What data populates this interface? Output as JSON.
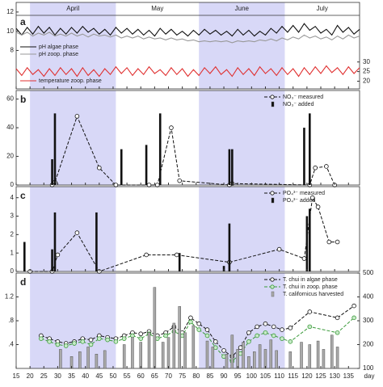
{
  "chart_data": [
    {
      "type": "line",
      "panel_label": "a",
      "months": [
        {
          "label": "April",
          "start": 20,
          "end": 51,
          "shaded": true
        },
        {
          "label": "May",
          "start": 51,
          "end": 81,
          "shaded": false
        },
        {
          "label": "June",
          "start": 81,
          "end": 112,
          "shaded": true
        },
        {
          "label": "July",
          "start": 112,
          "end": 139,
          "shaded": false
        }
      ],
      "ylim": [
        4,
        13
      ],
      "yticks": [
        8,
        10,
        12
      ],
      "y2lim": [
        16,
        61
      ],
      "y2ticks": [
        20,
        25,
        30
      ],
      "legend": "left",
      "x": [
        15,
        17,
        19,
        21,
        23,
        25,
        27,
        29,
        31,
        33,
        35,
        37,
        39,
        41,
        43,
        45,
        47,
        49,
        51,
        53,
        55,
        57,
        59,
        61,
        63,
        65,
        67,
        69,
        71,
        73,
        75,
        77,
        79,
        81,
        83,
        85,
        87,
        89,
        91,
        93,
        95,
        97,
        99,
        101,
        103,
        105,
        107,
        109,
        111,
        113,
        115,
        117,
        119,
        121,
        123,
        125,
        127,
        129,
        131,
        133,
        135,
        137,
        139
      ],
      "series": [
        {
          "name": "pH algae phase",
          "color": "#111111",
          "style": "line",
          "values": [
            10.3,
            9.6,
            10.4,
            9.7,
            10.5,
            9.8,
            10.4,
            9.6,
            10.3,
            9.7,
            10.4,
            9.8,
            10.5,
            9.9,
            10.3,
            9.7,
            10.2,
            9.6,
            10.4,
            9.8,
            10.3,
            9.7,
            10.2,
            9.6,
            10.1,
            9.5,
            10.3,
            9.7,
            10.2,
            9.6,
            10.0,
            9.5,
            10.1,
            9.6,
            10.2,
            9.7,
            10.1,
            9.6,
            10.0,
            9.5,
            10.2,
            9.6,
            10.1,
            9.5,
            10.0,
            9.6,
            10.3,
            9.8,
            10.5,
            9.9,
            10.6,
            9.9,
            10.8,
            10.1,
            10.5,
            9.8,
            10.2,
            9.6,
            10.6,
            9.9,
            10.4,
            9.7,
            10.2
          ]
        },
        {
          "name": "pH zoop. phase",
          "color": "#999999",
          "style": "line",
          "values": [
            9.9,
            9.6,
            9.9,
            9.5,
            9.8,
            9.6,
            9.9,
            9.5,
            9.7,
            9.5,
            9.8,
            9.5,
            9.7,
            9.4,
            9.7,
            9.5,
            9.6,
            9.4,
            9.6,
            9.3,
            9.5,
            9.3,
            9.5,
            9.2,
            9.4,
            9.2,
            9.3,
            9.1,
            9.3,
            9.1,
            9.2,
            9.0,
            9.1,
            8.9,
            9.0,
            8.9,
            9.0,
            8.9,
            9.0,
            8.8,
            9.0,
            8.9,
            9.0,
            8.9,
            9.1,
            9.0,
            9.2,
            9.0,
            9.3,
            9.1,
            9.4,
            9.2,
            9.6,
            9.3,
            9.5,
            9.2,
            9.4,
            9.1,
            9.5,
            9.2,
            9.6,
            9.3,
            9.5
          ]
        },
        {
          "name": "temperature zoop. phase",
          "color": "#e03030",
          "style": "line",
          "axis": "y2",
          "values": [
            26.5,
            23.0,
            27.0,
            23.5,
            26.0,
            22.5,
            26.5,
            23.0,
            27.0,
            23.5,
            26.5,
            22.5,
            27.0,
            23.0,
            26.0,
            22.5,
            26.5,
            23.5,
            27.5,
            24.0,
            27.0,
            23.0,
            26.5,
            23.5,
            27.5,
            24.0,
            26.0,
            23.0,
            27.0,
            23.5,
            26.5,
            22.5,
            26.0,
            23.0,
            27.0,
            24.0,
            27.5,
            23.5,
            26.0,
            22.5,
            27.0,
            23.5,
            26.5,
            23.0,
            27.5,
            24.0,
            26.5,
            23.0,
            27.0,
            23.5,
            26.5,
            22.5,
            27.0,
            23.5,
            27.5,
            24.0,
            28.0,
            24.5,
            27.0,
            23.5,
            27.5,
            24.0,
            27.0
          ]
        }
      ]
    },
    {
      "type": "combo",
      "panel_label": "b",
      "ylim": [
        0,
        66
      ],
      "yticks": [
        0,
        20,
        40,
        60
      ],
      "legend": "upper right",
      "series": [
        {
          "name": "NO₃⁻ measured",
          "color": "#111111",
          "style": "dashed-marker",
          "marker_fill": "#ffffff",
          "x": [
            28,
            29,
            37,
            45,
            51,
            63,
            66,
            71,
            74,
            92,
            93,
            121,
            123,
            127,
            130
          ],
          "values": [
            0,
            2,
            48,
            12,
            0,
            0,
            0,
            40,
            3,
            0,
            1,
            0,
            12,
            13,
            0
          ]
        },
        {
          "name": "NO₃⁻ added",
          "color": "#111111",
          "style": "bar",
          "x": [
            28,
            29,
            53,
            62,
            67,
            92,
            93,
            119,
            121
          ],
          "values": [
            18,
            50,
            25,
            28,
            50,
            25,
            25,
            40,
            50
          ]
        }
      ]
    },
    {
      "type": "combo",
      "panel_label": "c",
      "ylim": [
        0,
        4.6
      ],
      "yticks": [
        0,
        1,
        2,
        3,
        4
      ],
      "legend": "upper right",
      "series": [
        {
          "name": "PO₄³⁻ measured",
          "color": "#111111",
          "style": "dashed-marker",
          "marker_fill": "#ffffff",
          "x": [
            20,
            28,
            30,
            37,
            45,
            62,
            73,
            92,
            110,
            119,
            122,
            124,
            128,
            131
          ],
          "values": [
            0,
            0,
            0.9,
            2.1,
            0,
            0.9,
            0.9,
            0.5,
            1.2,
            0.7,
            4,
            3.5,
            1.6,
            1.6
          ]
        },
        {
          "name": "PO₄³⁻ added",
          "color": "#111111",
          "style": "bar",
          "x": [
            18,
            28,
            29,
            44,
            74,
            90,
            92,
            120,
            121
          ],
          "values": [
            1.6,
            1.2,
            3.2,
            3.2,
            1.0,
            0.3,
            2.6,
            3.0,
            3.4
          ]
        }
      ]
    },
    {
      "type": "combo",
      "panel_label": "d",
      "ylim": [
        0,
        1.6
      ],
      "yticks": [
        {
          "value": 0.4,
          "label": ".4"
        },
        {
          "value": 0.8,
          "label": ".8"
        },
        {
          "value": 1.2,
          "label": "1.2"
        }
      ],
      "y2lim": [
        100,
        500
      ],
      "y2ticks": [
        100,
        200,
        300,
        400,
        500
      ],
      "legend": "upper right",
      "xlim": [
        15,
        139
      ],
      "xticks": [
        15,
        20,
        25,
        30,
        35,
        40,
        45,
        50,
        55,
        60,
        65,
        70,
        75,
        80,
        85,
        90,
        95,
        100,
        105,
        110,
        115,
        120,
        125,
        130,
        135
      ],
      "xlabel": "day",
      "series": [
        {
          "name": "T. chui in algae phase",
          "color": "#111111",
          "style": "dashed-marker",
          "marker_fill": "#ffffff",
          "x": [
            24,
            27,
            30,
            33,
            36,
            39,
            42,
            45,
            48,
            51,
            54,
            57,
            60,
            63,
            66,
            69,
            72,
            75,
            78,
            81,
            84,
            87,
            90,
            93,
            96,
            99,
            102,
            105,
            108,
            111,
            114,
            121,
            131,
            137
          ],
          "values": [
            0.55,
            0.5,
            0.45,
            0.42,
            0.45,
            0.5,
            0.48,
            0.55,
            0.52,
            0.5,
            0.55,
            0.6,
            0.58,
            0.62,
            0.55,
            0.6,
            0.7,
            0.6,
            0.85,
            0.75,
            0.65,
            0.45,
            0.3,
            0.2,
            0.35,
            0.6,
            0.7,
            0.75,
            0.7,
            0.65,
            0.68,
            0.95,
            0.85,
            1.05
          ]
        },
        {
          "name": "T. chui in zoop. phase",
          "color": "#3a9a3a",
          "style": "dashed-marker",
          "marker_fill": "#c8eac8",
          "x": [
            24,
            27,
            30,
            33,
            36,
            39,
            42,
            45,
            48,
            51,
            54,
            57,
            60,
            63,
            66,
            69,
            72,
            75,
            78,
            81,
            84,
            87,
            90,
            93,
            96,
            99,
            102,
            105,
            108,
            111,
            114,
            121,
            131,
            137
          ],
          "values": [
            0.5,
            0.45,
            0.4,
            0.38,
            0.42,
            0.45,
            0.4,
            0.5,
            0.48,
            0.45,
            0.5,
            0.55,
            0.5,
            0.58,
            0.5,
            0.55,
            0.62,
            0.55,
            0.78,
            0.65,
            0.55,
            0.35,
            0.2,
            0.12,
            0.25,
            0.45,
            0.55,
            0.6,
            0.55,
            0.5,
            0.45,
            0.7,
            0.6,
            0.85
          ]
        },
        {
          "name": "T. californicus harvested",
          "color": "#aaaaaa",
          "style": "bar",
          "axis": "y2",
          "x": [
            31,
            35,
            38,
            41,
            44,
            47,
            54,
            57,
            60,
            63,
            65,
            68,
            70,
            72,
            74,
            76,
            79,
            84,
            86,
            91,
            93,
            95,
            97,
            99,
            101,
            103,
            105,
            107,
            109,
            114,
            118,
            121,
            124,
            126,
            129,
            131
          ],
          "values": [
            180,
            150,
            170,
            190,
            160,
            175,
            200,
            230,
            210,
            250,
            440,
            210,
            230,
            290,
            360,
            250,
            280,
            215,
            190,
            160,
            240,
            180,
            210,
            150,
            170,
            200,
            180,
            220,
            175,
            170,
            210,
            200,
            215,
            180,
            240,
            190
          ]
        }
      ]
    }
  ]
}
